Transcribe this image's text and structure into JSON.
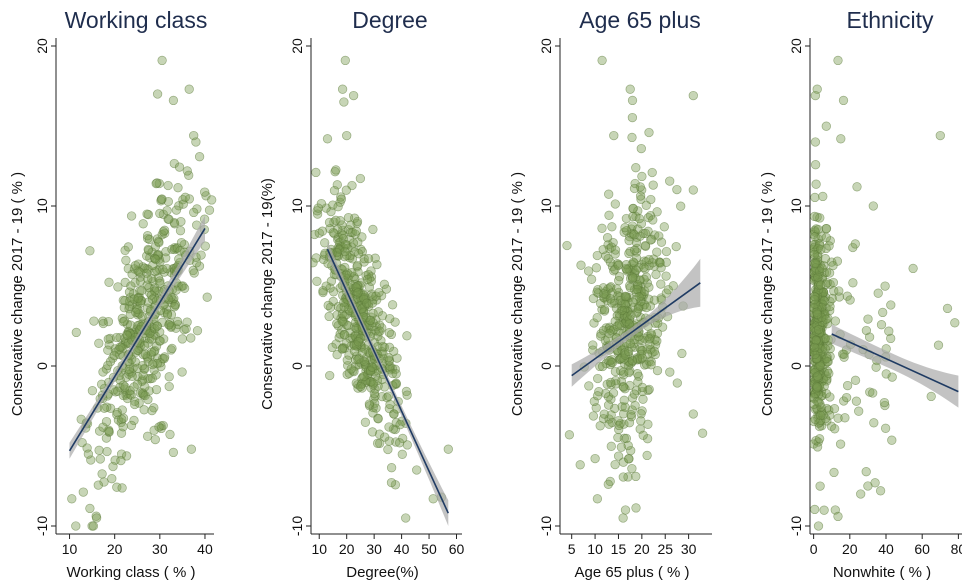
{
  "colors": {
    "point_fill": "#7a9a52",
    "point_stroke": "#5b7a38",
    "fit_line": "#1f3b63",
    "ci_band": "#a9a9a9",
    "title": "#1f2d4d"
  },
  "chart_data": [
    {
      "type": "scatter",
      "title": "Working class",
      "xlabel": "Working class ( % )",
      "ylabel": "Conservative change 2017 - 19 ( % )",
      "xlim": [
        7,
        42
      ],
      "ylim": [
        -10.5,
        20.5
      ],
      "xticks": [
        10,
        20,
        30,
        40
      ],
      "yticks": [
        -10,
        0,
        10,
        20
      ],
      "fit": {
        "x": [
          10,
          40
        ],
        "y": [
          -5.3,
          8.6
        ]
      },
      "ci_halfwidth": [
        0.5,
        0.3,
        0.8
      ],
      "cloud": {
        "slope": 0.47,
        "intercept": -10.0,
        "center": 27,
        "spread": 6,
        "noise": 3.0,
        "n": 480
      },
      "points": [
        [
          30.5,
          19.1
        ],
        [
          29.5,
          17.0
        ],
        [
          36.5,
          17.3
        ],
        [
          33.0,
          16.6
        ],
        [
          37.5,
          14.4
        ],
        [
          14.5,
          7.2
        ],
        [
          11.5,
          2.1
        ],
        [
          10.5,
          -8.3
        ],
        [
          16.0,
          -9.5
        ],
        [
          14.5,
          -8.9
        ],
        [
          37.0,
          -5.2
        ],
        [
          33.0,
          -5.4
        ],
        [
          29.0,
          -4.6
        ],
        [
          40.5,
          4.3
        ],
        [
          38.0,
          14.0
        ]
      ]
    },
    {
      "type": "scatter",
      "title": "Degree",
      "xlabel": "Degree(%)",
      "ylabel": "Conservative change 2017 - 19(%)",
      "xlim": [
        7,
        62
      ],
      "ylim": [
        -10.5,
        20.5
      ],
      "xticks": [
        10,
        20,
        30,
        40,
        50,
        60
      ],
      "yticks": [
        -10,
        0,
        10,
        20
      ],
      "fit": {
        "x": [
          13,
          57
        ],
        "y": [
          7.3,
          -9.2
        ]
      },
      "ci_halfwidth": [
        0.5,
        0.3,
        0.8
      ],
      "cloud": {
        "slope": -0.37,
        "intercept": 12.0,
        "center": 25,
        "spread": 7,
        "noise": 2.8,
        "n": 480
      },
      "points": [
        [
          19.5,
          19.1
        ],
        [
          18.5,
          17.3
        ],
        [
          22.5,
          16.9
        ],
        [
          19.0,
          16.5
        ],
        [
          13.0,
          14.2
        ],
        [
          20.0,
          14.4
        ],
        [
          51.5,
          -8.3
        ],
        [
          54.5,
          -8.2
        ],
        [
          41.5,
          -9.5
        ],
        [
          45.5,
          -6.5
        ],
        [
          12.0,
          7.7
        ],
        [
          57.0,
          -5.2
        ]
      ]
    },
    {
      "type": "scatter",
      "title": "Age 65 plus",
      "xlabel": "Age 65 plus ( % )",
      "ylabel": "Conservative change 2017 - 19 ( % )",
      "xlim": [
        2.5,
        35
      ],
      "ylim": [
        -10.5,
        20.5
      ],
      "xticks": [
        5,
        10,
        15,
        20,
        25,
        30
      ],
      "yticks": [
        -10,
        0,
        10,
        20
      ],
      "fit": {
        "x": [
          5,
          32.5
        ],
        "y": [
          -0.6,
          5.2
        ]
      },
      "ci_halfwidth": [
        0.7,
        0.3,
        1.5
      ],
      "cloud": {
        "slope": 0.2,
        "intercept": -0.7,
        "center": 17,
        "spread": 4,
        "noise": 4.2,
        "n": 480
      },
      "points": [
        [
          11.5,
          19.1
        ],
        [
          17.5,
          17.3
        ],
        [
          18.0,
          16.6
        ],
        [
          31.0,
          16.9
        ],
        [
          14.0,
          14.4
        ],
        [
          31.0,
          11.0
        ],
        [
          4.5,
          -4.3
        ],
        [
          33.0,
          -4.2
        ],
        [
          31.0,
          -3.0
        ],
        [
          10.5,
          -8.3
        ],
        [
          16.0,
          -9.5
        ],
        [
          16.5,
          -9.0
        ],
        [
          7.0,
          6.3
        ]
      ]
    },
    {
      "type": "scatter",
      "title": "Ethnicity",
      "xlabel": "Nonwhite ( % )",
      "ylabel": "Conservative change 2017 - 19 ( % )",
      "xlim": [
        -2,
        82
      ],
      "ylim": [
        -10.5,
        20.5
      ],
      "xticks": [
        0,
        20,
        40,
        60,
        80
      ],
      "yticks": [
        -10,
        0,
        10,
        20
      ],
      "fit": {
        "x": [
          10,
          80
        ],
        "y": [
          2.0,
          -1.6
        ]
      },
      "ci_halfwidth": [
        0.6,
        0.5,
        1.0
      ],
      "cloud": {
        "slope": -0.05,
        "intercept": 2.5,
        "center": 4,
        "spread": 4,
        "noise": 3.6,
        "n": 430
      },
      "points": [
        [
          13.5,
          19.1
        ],
        [
          2.0,
          17.3
        ],
        [
          1.0,
          16.9
        ],
        [
          16.5,
          16.6
        ],
        [
          70.0,
          14.4
        ],
        [
          15.0,
          14.2
        ],
        [
          1.0,
          14.0
        ],
        [
          24.0,
          11.2
        ],
        [
          33.0,
          10.0
        ],
        [
          26.0,
          -8.0
        ],
        [
          30.0,
          -7.5
        ],
        [
          34.0,
          -7.3
        ],
        [
          37.0,
          -7.8
        ],
        [
          12.0,
          -9.0
        ],
        [
          13.5,
          -9.4
        ],
        [
          74.0,
          3.6
        ],
        [
          69.0,
          1.3
        ],
        [
          78.0,
          2.7
        ],
        [
          55.0,
          6.1
        ],
        [
          65.0,
          -1.9
        ]
      ]
    }
  ]
}
